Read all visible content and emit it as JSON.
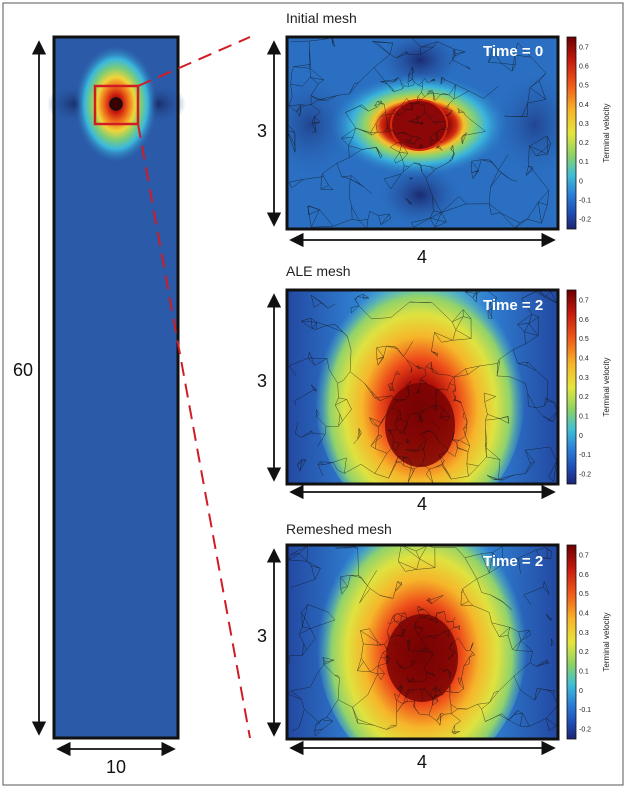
{
  "figure": {
    "domain_column": {
      "height_label": "60",
      "width_label": "10"
    },
    "panels": [
      {
        "title": "Initial mesh",
        "time_label": "Time = 0",
        "height_label": "3",
        "width_label": "4"
      },
      {
        "title": "ALE mesh",
        "time_label": "Time = 2",
        "height_label": "3",
        "width_label": "4"
      },
      {
        "title": "Remeshed mesh",
        "time_label": "Time = 2",
        "height_label": "3",
        "width_label": "4"
      }
    ],
    "colorbar": {
      "title": "Terminal velocity",
      "ticks": [
        "0.7",
        "0.6",
        "0.5",
        "0.4",
        "0.3",
        "0.2",
        "0.1",
        "0",
        "-0.1",
        "-0.2"
      ],
      "colors": [
        "#6b0000",
        "#c41a0d",
        "#f05a1a",
        "#f7b42a",
        "#e6e63c",
        "#8ad16a",
        "#3fbfd6",
        "#2b7fd9",
        "#1f4bb3",
        "#1c2570"
      ]
    },
    "colors": {
      "zoom_box": "#d01c24",
      "background_field": "#2a5aa8",
      "border": "#111111"
    }
  }
}
